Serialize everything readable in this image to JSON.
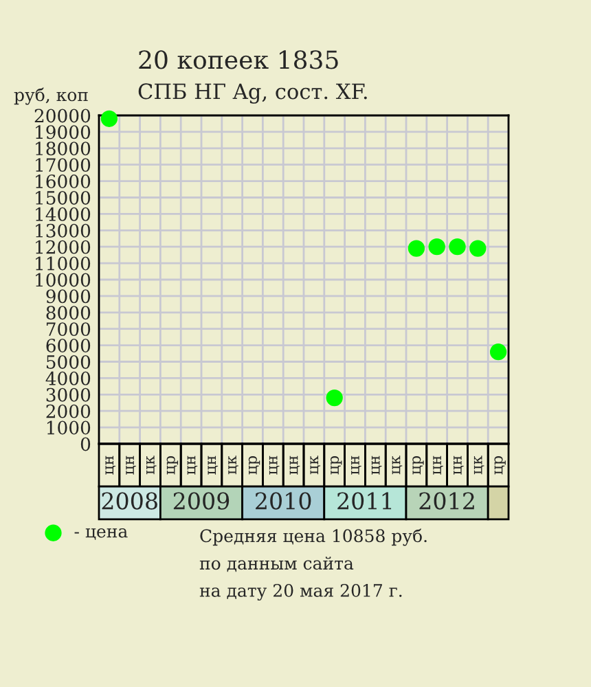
{
  "chart_data": {
    "type": "scatter",
    "title": "20 копеек 1835",
    "subtitle": "СПБ НГ Ag, сост. XF.",
    "ylabel": "руб, коп",
    "categories": [
      "цн",
      "цн",
      "цк",
      "цр",
      "цн",
      "цн",
      "цк",
      "цр",
      "цн",
      "цн",
      "цк",
      "цр",
      "цн",
      "цн",
      "цк",
      "цр",
      "цн",
      "цн",
      "цк",
      "цр"
    ],
    "series": [
      {
        "name": "- цена",
        "color": "#00ff00",
        "values": [
          19800,
          null,
          null,
          null,
          null,
          null,
          null,
          null,
          null,
          null,
          null,
          2800,
          null,
          null,
          null,
          11900,
          12000,
          12000,
          11900,
          5600
        ]
      }
    ],
    "ylim": [
      0,
      20000
    ],
    "yticks": [
      0,
      1000,
      2000,
      3000,
      4000,
      5000,
      6000,
      7000,
      8000,
      9000,
      10000,
      11000,
      12000,
      13000,
      14000,
      15000,
      16000,
      17000,
      18000,
      19000,
      20000
    ],
    "annotations": [
      "2008",
      "2009",
      "2010",
      "2011",
      "2012",
      "Средняя цена 10858 руб.",
      "по данным сайта",
      "на дату 20 мая 2017 г."
    ],
    "grid": true,
    "marker": "circle",
    "legend": "bottom left",
    "tick_labels": "y"
  }
}
